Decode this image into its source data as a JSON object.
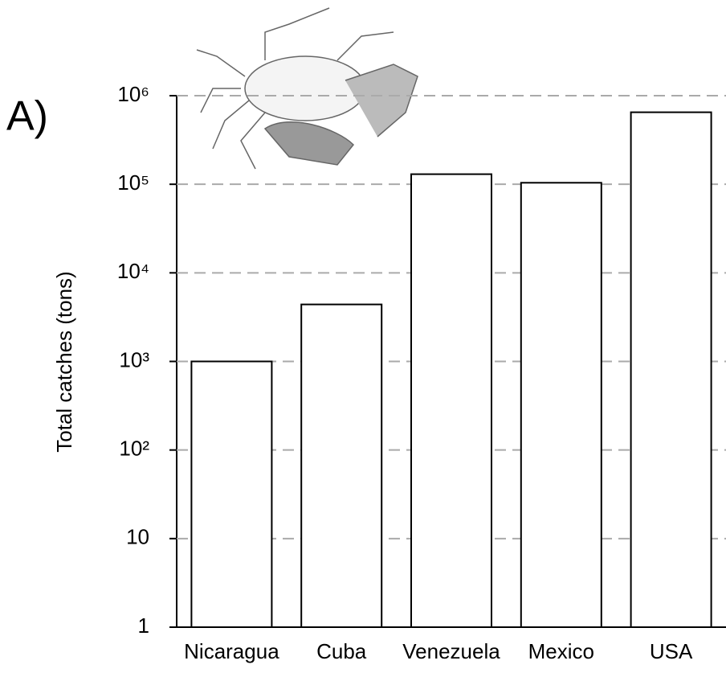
{
  "chart_data": {
    "type": "bar",
    "annotation": "A)",
    "y_label": "Total catches (tons)",
    "categories": [
      "Nicaragua",
      "Cuba",
      "Venezuela",
      "Mexico",
      "USA"
    ],
    "values": [
      1000,
      4400,
      130000,
      104000,
      650000
    ],
    "color": "#ffffff",
    "edgecolor": "#000000",
    "log_scale": true,
    "grid": true,
    "ylim": [
      1,
      1000000
    ],
    "yticks": [
      1,
      10,
      {
        "value": 100,
        "label": "10²"
      },
      {
        "value": 1000,
        "label": "10³"
      },
      {
        "value": 10000,
        "label": "10⁴"
      },
      {
        "value": 100000,
        "label": "10⁵"
      },
      {
        "value": 1000000,
        "label": "10⁶"
      }
    ]
  }
}
